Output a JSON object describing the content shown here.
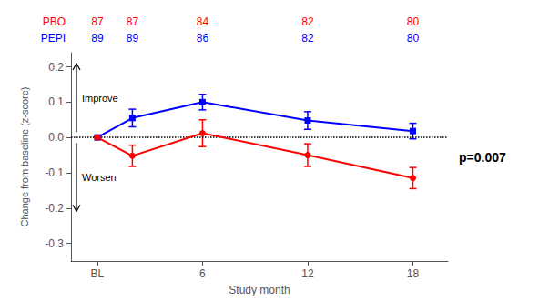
{
  "chart_data": {
    "type": "line",
    "x": [
      0,
      2,
      6,
      12,
      18
    ],
    "series": [
      {
        "name": "PEPI",
        "color": "#0000FF",
        "marker": "square",
        "line_style": "solid",
        "values": [
          0.0,
          0.055,
          0.1,
          0.048,
          0.018
        ],
        "errors": [
          0.0,
          0.025,
          0.022,
          0.025,
          0.022
        ],
        "n": [
          89,
          89,
          86,
          82,
          80
        ]
      },
      {
        "name": "PBO",
        "color": "#FF0000",
        "marker": "circle",
        "line_style": "solid",
        "values": [
          0.0,
          -0.052,
          0.012,
          -0.05,
          -0.115
        ],
        "errors": [
          0.0,
          0.03,
          0.038,
          0.032,
          0.03
        ],
        "n": [
          87,
          87,
          84,
          82,
          80
        ]
      }
    ],
    "xlabel": "Study month",
    "ylabel": "Change from baseline (z-score)",
    "xlim": [
      -1.5,
      20
    ],
    "xticks": [
      {
        "value": 0,
        "label": "BL"
      },
      6,
      12,
      18
    ],
    "ylim": [
      -0.35,
      0.24
    ],
    "yticks": [
      -0.3,
      -0.2,
      -0.1,
      {
        "value": 0.0,
        "label": "0.0"
      },
      0.1,
      0.2
    ],
    "grid": false,
    "reference_lines": [
      {
        "y": 0,
        "line_style": "dotted"
      }
    ],
    "annotations": [
      {
        "text": "Improve",
        "arrow": "up"
      },
      {
        "text": "Worsen",
        "arrow": "down"
      },
      {
        "text": "p=0.007"
      }
    ]
  }
}
